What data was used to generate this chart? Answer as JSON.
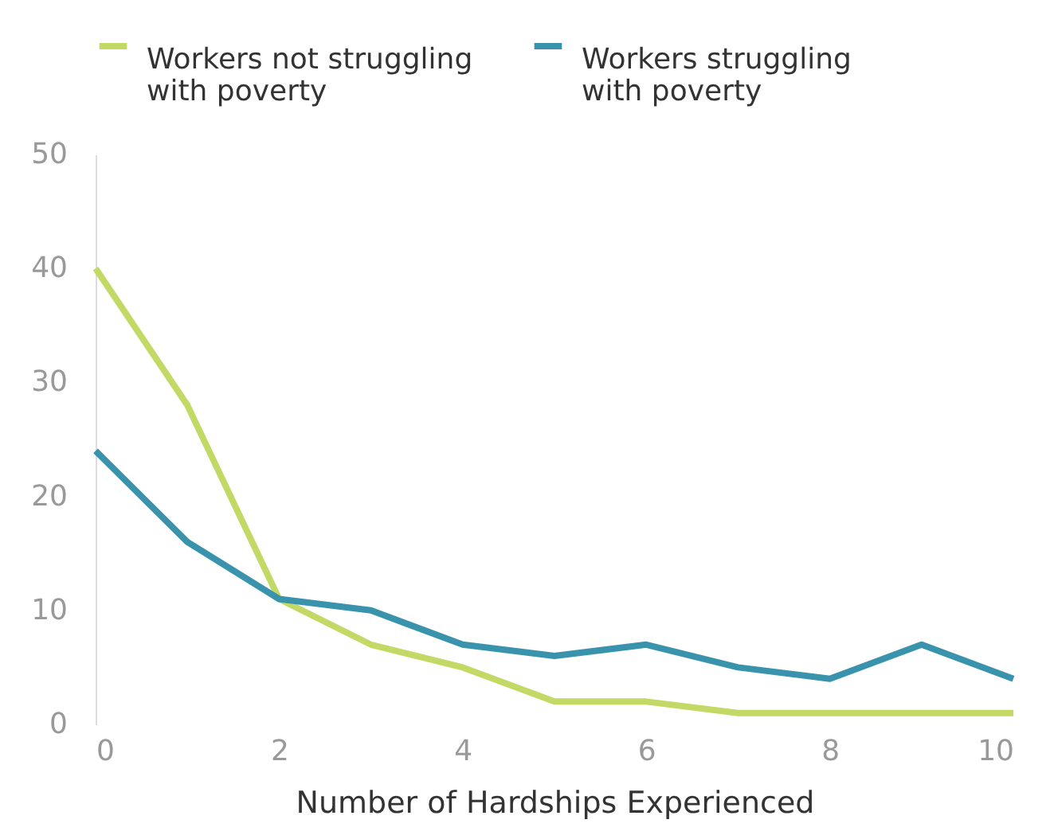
{
  "chart_data": {
    "type": "line",
    "xlabel": "Number of Hardships Experienced",
    "x": [
      0,
      1,
      2,
      3,
      4,
      5,
      6,
      7,
      8,
      9,
      10
    ],
    "xlim": [
      0,
      10
    ],
    "xticks": [
      0,
      2,
      4,
      6,
      8,
      10
    ],
    "ylim": [
      0,
      50
    ],
    "yticks": [
      0,
      10,
      20,
      30,
      40,
      50
    ],
    "grid": false,
    "legend": "top",
    "series": [
      {
        "name": "Workers not struggling with poverty",
        "color": "#c2d966",
        "values": [
          40,
          28,
          11,
          7,
          5,
          2,
          2,
          1,
          1,
          1,
          1
        ]
      },
      {
        "name": "Workers struggling with poverty",
        "color": "#3a93ad",
        "values": [
          24,
          16,
          11,
          10,
          7,
          6,
          7,
          5,
          4,
          7,
          4
        ]
      }
    ]
  }
}
